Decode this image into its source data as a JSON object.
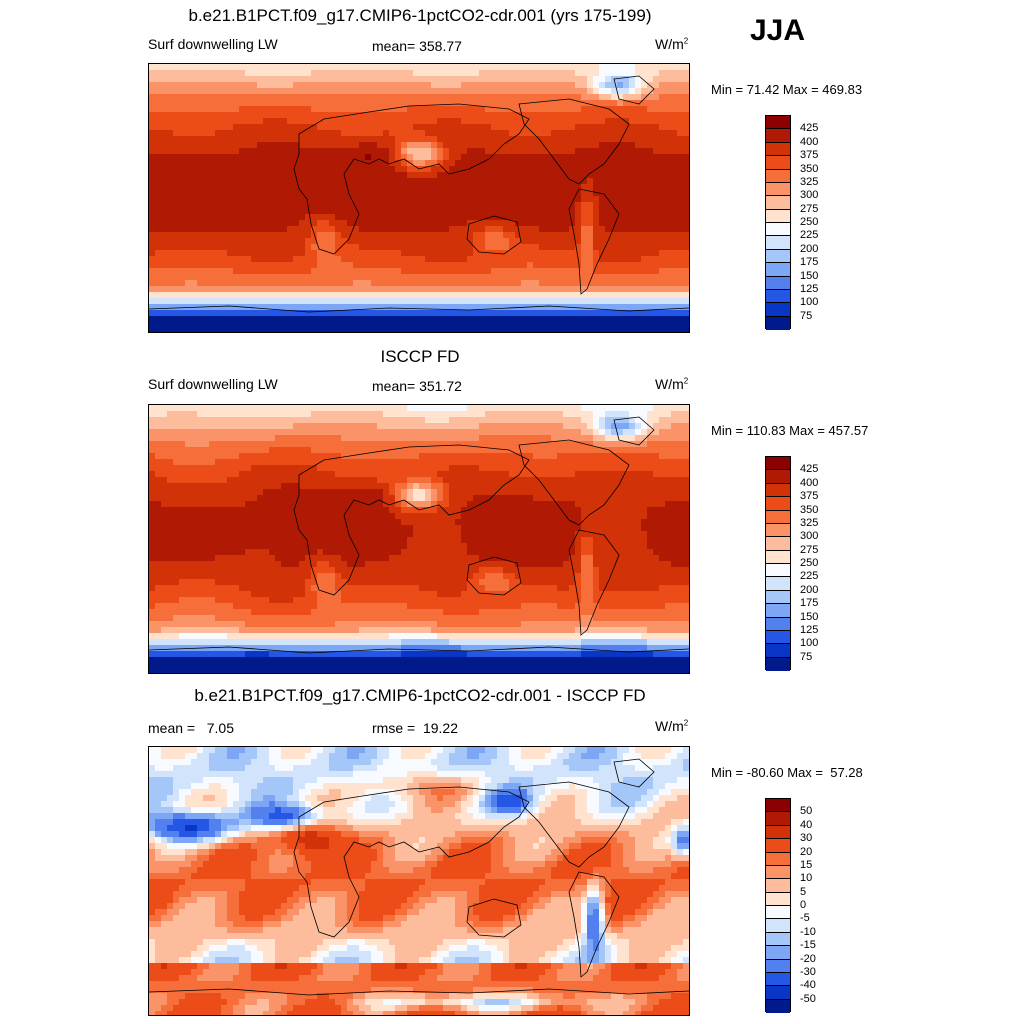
{
  "season": "JJA",
  "panels": [
    {
      "title": "b.e21.B1PCT.f09_g17.CMIP6-1pctCO2-cdr.001 (yrs 175-199)",
      "left_label": "Surf downwelling LW",
      "center_label": "mean= 358.77",
      "units": "W/m",
      "units_exp": "2",
      "minmax": "Min =  71.42 Max = 469.83",
      "labels": [
        "425",
        "400",
        "375",
        "350",
        "325",
        "300",
        "275",
        "250",
        "225",
        "200",
        "175",
        "150",
        "125",
        "100",
        "75"
      ],
      "colors": [
        "#8b0000",
        "#b01a05",
        "#d23208",
        "#ec4c18",
        "#f66f3a",
        "#fa9468",
        "#fdbd9d",
        "#ffe3cf",
        "#f7fbff",
        "#d2e4fb",
        "#a4c6f8",
        "#7da6f4",
        "#5281ef",
        "#2457e6",
        "#0a36c6",
        "#001a8b"
      ],
      "field": "abs"
    },
    {
      "title": "ISCCP FD",
      "left_label": "Surf downwelling LW",
      "center_label": "mean= 351.72",
      "units": "W/m",
      "units_exp": "2",
      "minmax": "Min = 110.83 Max = 457.57",
      "labels": [
        "425",
        "400",
        "375",
        "350",
        "325",
        "300",
        "275",
        "250",
        "225",
        "200",
        "175",
        "150",
        "125",
        "100",
        "75"
      ],
      "colors": [
        "#8b0000",
        "#b01a05",
        "#d23208",
        "#ec4c18",
        "#f66f3a",
        "#fa9468",
        "#fdbd9d",
        "#ffe3cf",
        "#f7fbff",
        "#d2e4fb",
        "#a4c6f8",
        "#7da6f4",
        "#5281ef",
        "#2457e6",
        "#0a36c6",
        "#001a8b"
      ],
      "field": "abs"
    },
    {
      "title": "b.e21.B1PCT.f09_g17.CMIP6-1pctCO2-cdr.001 - ISCCP FD",
      "left_label": "mean =   7.05",
      "center_label": "rmse =  19.22",
      "units": "W/m",
      "units_exp": "2",
      "minmax": "Min = -80.60 Max =  57.28",
      "labels": [
        "50",
        "40",
        "30",
        "20",
        "15",
        "10",
        "5",
        "0",
        "-5",
        "-10",
        "-15",
        "-20",
        "-30",
        "-40",
        "-50"
      ],
      "colors": [
        "#8b0000",
        "#b01a05",
        "#d23208",
        "#ec4c18",
        "#f66f3a",
        "#fa9468",
        "#fdbd9d",
        "#ffe3cf",
        "#f7fbff",
        "#d2e4fb",
        "#a4c6f8",
        "#7da6f4",
        "#5281ef",
        "#2457e6",
        "#0a36c6",
        "#001a8b"
      ],
      "field": "diff"
    }
  ]
}
